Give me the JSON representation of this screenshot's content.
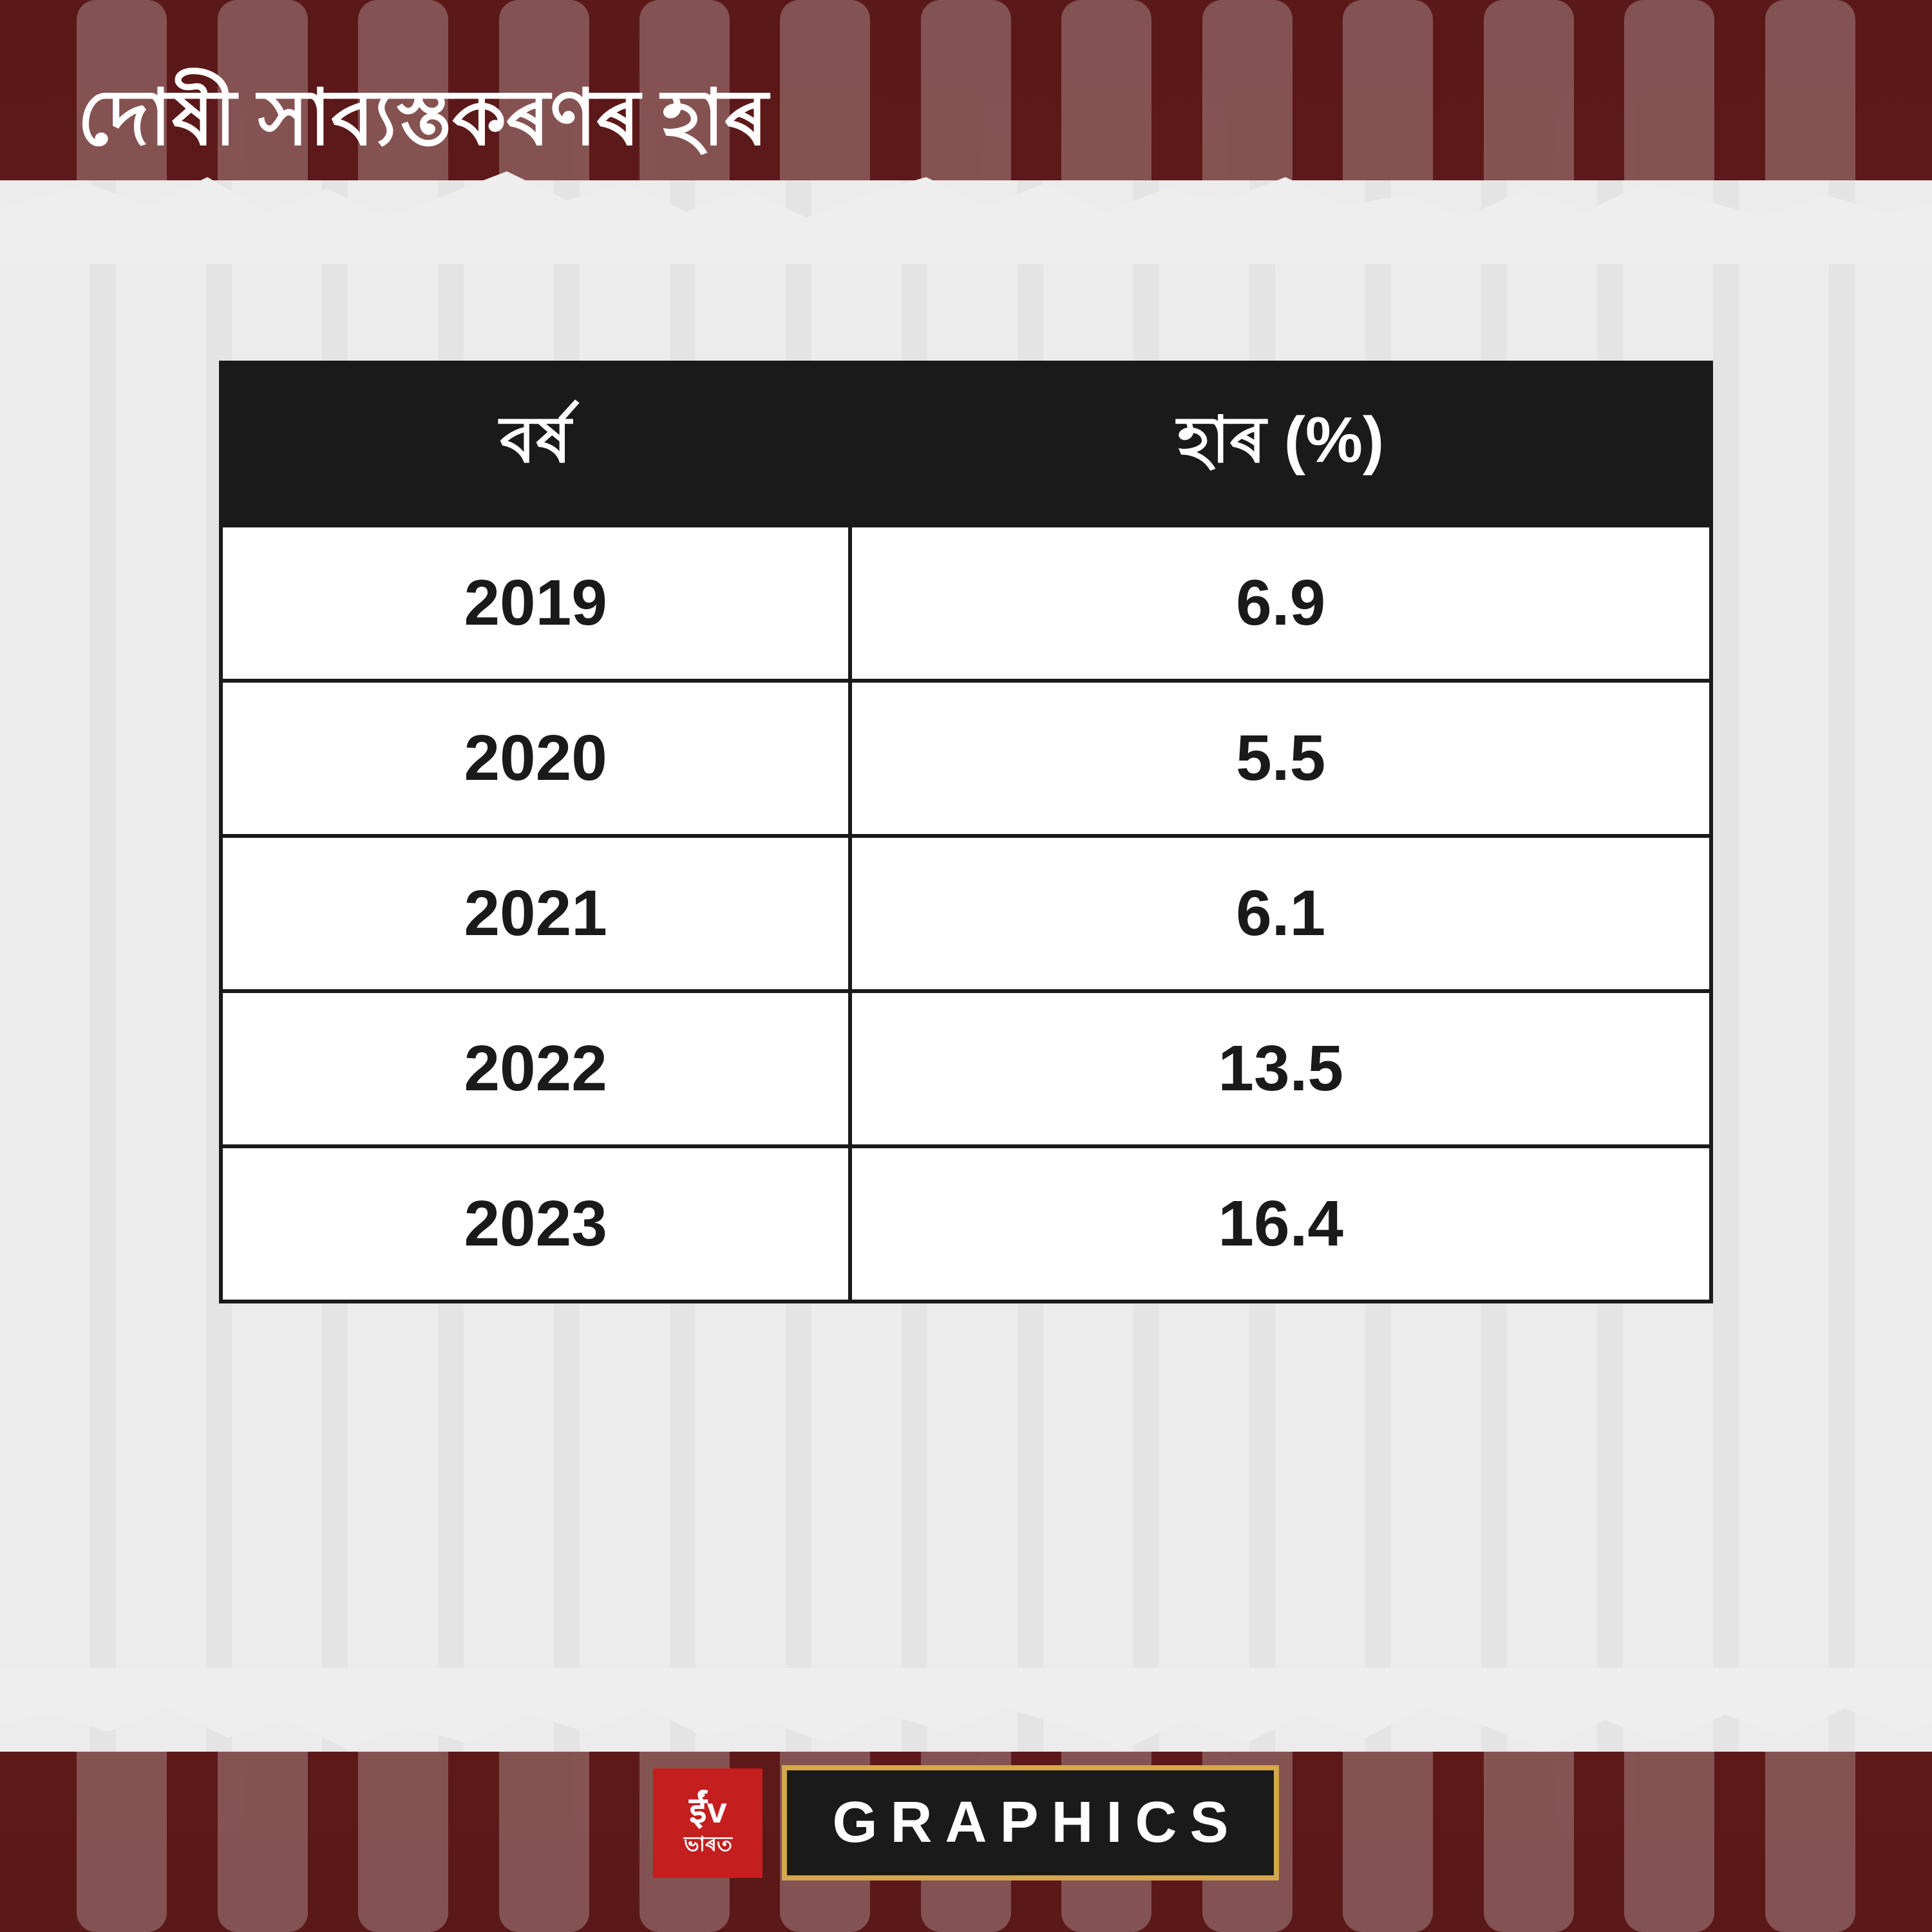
{
  "title": "দোষী সাব্যস্তকৰণৰ হাৰ",
  "table": {
    "type": "table",
    "columns": [
      "বৰ্ষ",
      "হাৰ (%)"
    ],
    "rows": [
      [
        "2019",
        "6.9"
      ],
      [
        "2020",
        "5.5"
      ],
      [
        "2021",
        "6.1"
      ],
      [
        "2022",
        "13.5"
      ],
      [
        "2023",
        "16.4"
      ]
    ],
    "header_bg": "#1a1a1a",
    "header_fg": "#ffffff",
    "cell_bg": "#ffffff",
    "cell_fg": "#1a1a1a",
    "border_color": "#1a1a1a",
    "border_width": 6,
    "header_fontsize": 100,
    "cell_fontsize": 100
  },
  "background": {
    "primary_color": "#5a1818",
    "torn_paper_color": "#eeeeee",
    "bar_pattern_color": "#ffffff",
    "bar_pattern_opacity": 0.25
  },
  "footer": {
    "logo_text_top": "ईंv",
    "logo_text_bottom": "ভাৰত",
    "logo_bg": "#c41e1e",
    "logo_fg": "#ffffff",
    "graphics_label": "GRAPHICS",
    "graphics_bg": "#1a1a1a",
    "graphics_fg": "#ffffff",
    "graphics_border": "#d4a84b"
  },
  "typography": {
    "title_fontsize": 120,
    "title_color": "#ffffff",
    "font_family": "Arial"
  }
}
